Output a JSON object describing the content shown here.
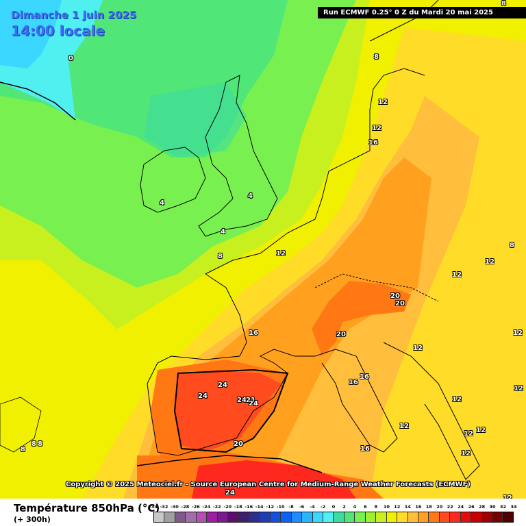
{
  "header": {
    "date_line": "Dimanche 1 juin 2025",
    "time_line": "14:00 locale",
    "run_info": "Run ECMWF 0.25° 0 Z du Mardi 20 mai 2025"
  },
  "copyright": "Copyright © 2025 Meteociel.fr - Source European Centre for Medium-Range Weather Forecasts (ECMWF)",
  "footer": {
    "variable": "Température 850hPa (°C)",
    "lead": "(+ 300h)"
  },
  "legend": {
    "ticks": [
      "-34",
      "-32",
      "-30",
      "-28",
      "-26",
      "-24",
      "-22",
      "-20",
      "-18",
      "-16",
      "-14",
      "-12",
      "-10",
      "-8",
      "-6",
      "-4",
      "-2",
      "0",
      "2",
      "4",
      "6",
      "8",
      "10",
      "12",
      "14",
      "16",
      "18",
      "20",
      "22",
      "24",
      "26",
      "28",
      "30",
      "32",
      "34"
    ],
    "colors": [
      "#c8c8c8",
      "#a0a0a0",
      "#7d5a8a",
      "#a06ea8",
      "#b450b4",
      "#9b1fa0",
      "#7a1a8c",
      "#5a0f6e",
      "#3c1e6e",
      "#2d2d8c",
      "#1e3cb4",
      "#1450dc",
      "#0a64f0",
      "#1e8cff",
      "#28b4ff",
      "#3cd7ff",
      "#50f0f0",
      "#3cdca0",
      "#50e678",
      "#78f050",
      "#a0f032",
      "#c8f01e",
      "#f0f000",
      "#ffdc28",
      "#ffbe3c",
      "#ffa01e",
      "#ff7814",
      "#ff4b1e",
      "#ff281e",
      "#e60a0a",
      "#c80000",
      "#a00000",
      "#780000",
      "#500000"
    ]
  },
  "map": {
    "labels": [
      {
        "text": "0",
        "id": "label-0"
      },
      {
        "text": "8",
        "id": "label-8-top"
      },
      {
        "text": "8",
        "id": "label-8-norway"
      },
      {
        "text": "12",
        "id": "label-12-denmark-a"
      },
      {
        "text": "12",
        "id": "label-12-denmark-b"
      },
      {
        "text": "16",
        "id": "label-16-denmark"
      },
      {
        "text": "4",
        "id": "label-4-ireland"
      },
      {
        "text": "4",
        "id": "label-4-england"
      },
      {
        "text": "4",
        "id": "label-4-channel"
      },
      {
        "text": "8",
        "id": "label-8-bretagne"
      },
      {
        "text": "12",
        "id": "label-12-benelux"
      },
      {
        "text": "8",
        "id": "label-8-east"
      },
      {
        "text": "12",
        "id": "label-12-poland"
      },
      {
        "text": "12",
        "id": "label-12-austria"
      },
      {
        "text": "20",
        "id": "label-20-alps-a"
      },
      {
        "text": "20",
        "id": "label-20-alps-b"
      },
      {
        "text": "20",
        "id": "label-20-provence"
      },
      {
        "text": "16",
        "id": "label-16-gascogne"
      },
      {
        "text": "12",
        "id": "label-12-hungary"
      },
      {
        "text": "12",
        "id": "label-12-balkans"
      },
      {
        "text": "12",
        "id": "label-12-east-b"
      },
      {
        "text": "24",
        "id": "label-24-spain-a"
      },
      {
        "text": "24",
        "id": "label-24-spain-b"
      },
      {
        "text": "24",
        "id": "label-24-spain-c"
      },
      {
        "text": "21",
        "id": "label-21-spain"
      },
      {
        "text": "24",
        "id": "label-24-spain-d"
      },
      {
        "text": "20",
        "id": "label-20-spain-south"
      },
      {
        "text": "16",
        "id": "label-16-italy-a"
      },
      {
        "text": "16",
        "id": "label-16-italy-b"
      },
      {
        "text": "12",
        "id": "label-12-adriatic"
      },
      {
        "text": "12",
        "id": "label-12-greece-a"
      },
      {
        "text": "12",
        "id": "label-12-greece-b"
      },
      {
        "text": "12",
        "id": "label-12-greece-c"
      },
      {
        "text": "12",
        "id": "label-12-greece-d"
      },
      {
        "text": "12",
        "id": "label-12-east-c"
      },
      {
        "text": "16",
        "id": "label-16-sicily"
      },
      {
        "text": "8",
        "id": "label-8-atlantic-a"
      },
      {
        "text": "8",
        "id": "label-8-atlantic-b"
      },
      {
        "text": "24",
        "id": "label-24-africa"
      },
      {
        "text": "8",
        "id": "label-8-top-right"
      }
    ]
  }
}
